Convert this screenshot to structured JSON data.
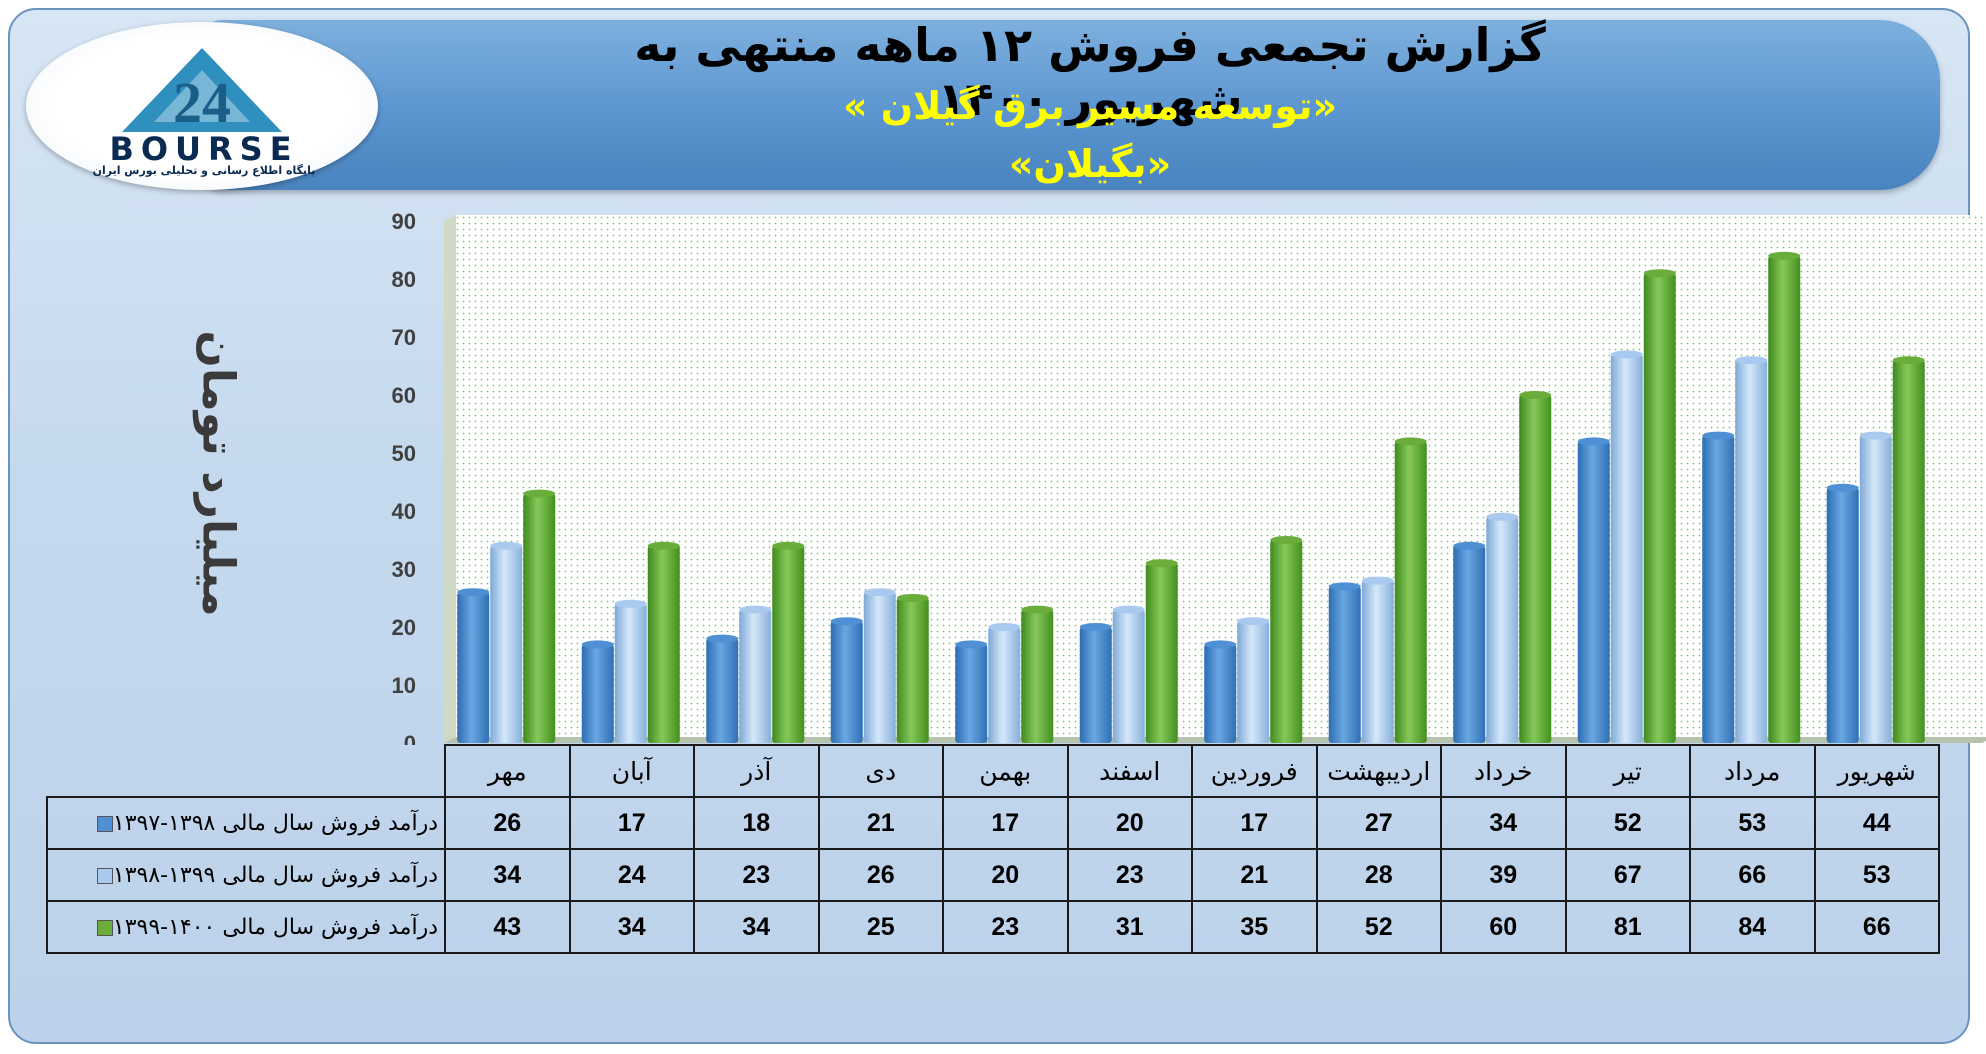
{
  "title": "گزارش تجمعی فروش ۱۲ ماهه منتهی به شهریور ۱۴۰۰",
  "subtitle": "«توسعه مسیر برق گیلان »",
  "symbol": "«بگیلان»",
  "logo": {
    "word": "BOURSE",
    "tagline": "پایگاه اطلاع رسانی و تحلیلی بورس ایران",
    "mark_text": "24"
  },
  "colors": {
    "series1": "#4f8fd4",
    "series2": "#a9caee",
    "series3": "#6aad3a"
  },
  "chart_data": {
    "type": "bar",
    "ylabel": "میلیارد تومان",
    "ylim": [
      0,
      90
    ],
    "yticks": [
      0,
      10,
      20,
      30,
      40,
      50,
      60,
      70,
      80,
      90
    ],
    "grid": false,
    "categories": [
      "مهر",
      "آبان",
      "آذر",
      "دی",
      "بهمن",
      "اسفند",
      "فروردین",
      "اردیبهشت",
      "خرداد",
      "تیر",
      "مرداد",
      "شهریور"
    ],
    "series": [
      {
        "name": "درآمد فروش سال مالی ۱۳۹۸-۱۳۹۷",
        "values": [
          26,
          17,
          18,
          21,
          17,
          20,
          17,
          27,
          34,
          52,
          53,
          44
        ]
      },
      {
        "name": "درآمد فروش سال مالی ۱۳۹۹-۱۳۹۸",
        "values": [
          34,
          24,
          23,
          26,
          20,
          23,
          21,
          28,
          39,
          67,
          66,
          53
        ]
      },
      {
        "name": "درآمد فروش سال مالی ۱۴۰۰-۱۳۹۹",
        "values": [
          43,
          34,
          34,
          25,
          23,
          31,
          35,
          52,
          60,
          81,
          84,
          66
        ]
      }
    ]
  }
}
